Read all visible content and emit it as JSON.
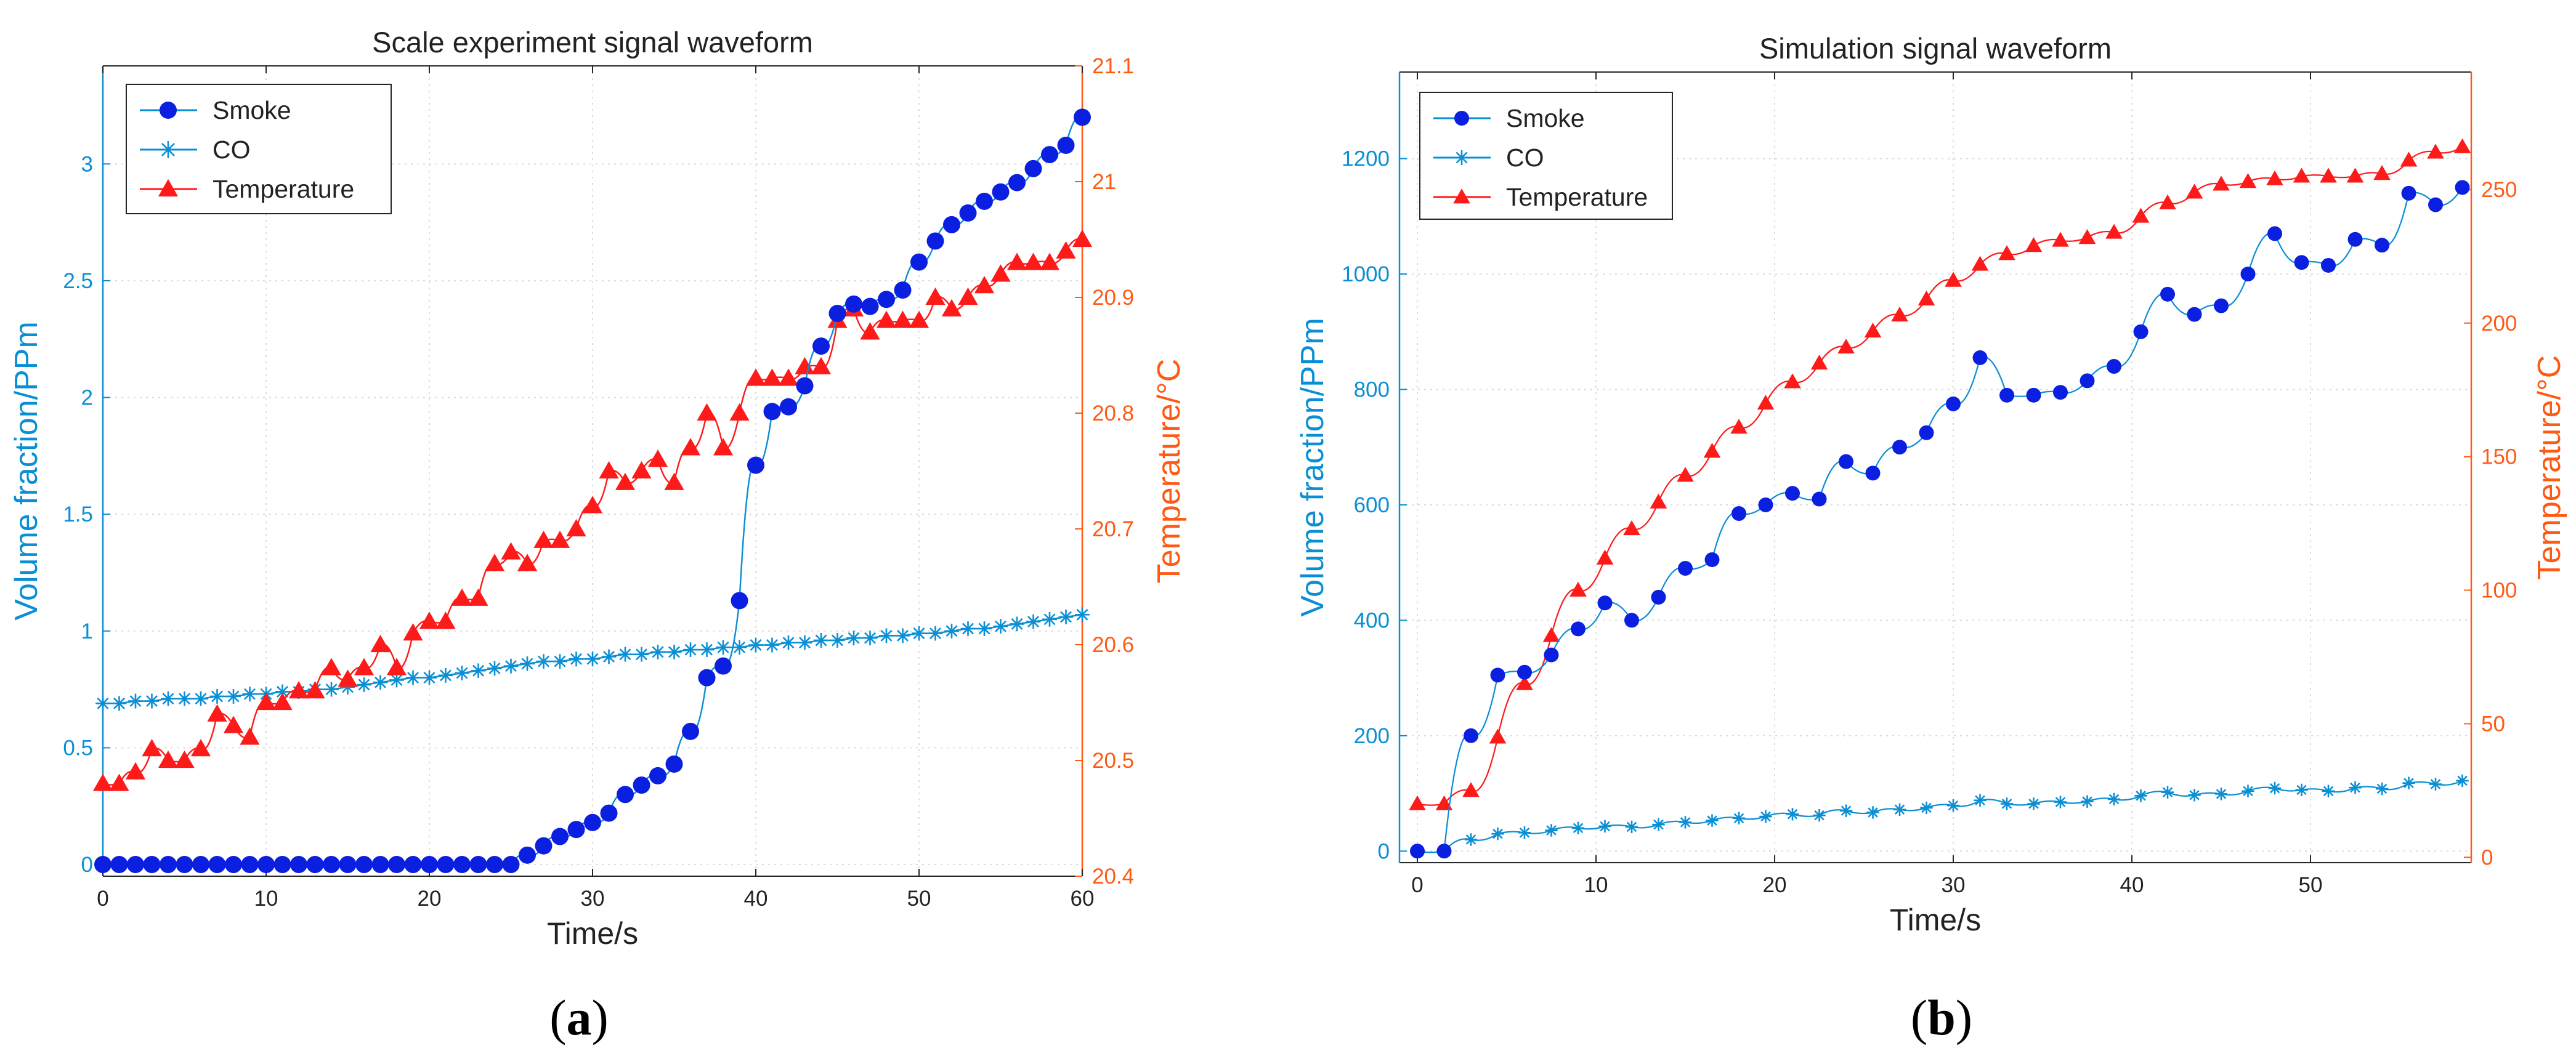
{
  "colors": {
    "left_axis": "#0a8fd4",
    "right_axis": "#ff5a14",
    "smoke": "#0a1fe0",
    "co": "#0a8fd4",
    "temperature": "#ff1a1a",
    "grid": "#dcdcdc",
    "text": "#222222"
  },
  "panels": [
    {
      "label": "(a)",
      "letter": "a"
    },
    {
      "label": "(b)",
      "letter": "b"
    }
  ],
  "chart_data": [
    {
      "type": "line",
      "title": "Scale experiment signal waveform",
      "xlabel": "Time/s",
      "ylabel": "Volume fraction/PPm",
      "y2label": "Temperature/°C",
      "xlim": [
        0,
        60
      ],
      "ylim": [
        -0.05,
        3.42
      ],
      "y2lim": [
        20.4,
        21.1
      ],
      "xticks": [
        0,
        10,
        20,
        30,
        40,
        50,
        60
      ],
      "yticks": [
        0,
        0.5,
        1,
        1.5,
        2,
        2.5,
        3
      ],
      "y2ticks": [
        20.4,
        20.5,
        20.6,
        20.7,
        20.8,
        20.9,
        21,
        21.1
      ],
      "grid": true,
      "legend_position": "top-left",
      "legend": [
        "Smoke",
        "CO",
        "Temperature"
      ],
      "series": [
        {
          "name": "Smoke",
          "marker": "circle",
          "axis": "left",
          "x": [
            0,
            1,
            2,
            3,
            4,
            5,
            6,
            7,
            8,
            9,
            10,
            11,
            12,
            13,
            14,
            15,
            16,
            17,
            18,
            19,
            20,
            21,
            22,
            23,
            24,
            25,
            26,
            27,
            28,
            29,
            30,
            31,
            32,
            33,
            34,
            35,
            36,
            37,
            38,
            39,
            40,
            41,
            42,
            43,
            44,
            45,
            46,
            47,
            48,
            49,
            50,
            51,
            52,
            53,
            54,
            55,
            56,
            57,
            58,
            59,
            60
          ],
          "values": [
            0,
            0,
            0,
            0,
            0,
            0,
            0,
            0,
            0,
            0,
            0,
            0,
            0,
            0,
            0,
            0,
            0,
            0,
            0,
            0,
            0,
            0,
            0,
            0,
            0,
            0,
            0.04,
            0.08,
            0.12,
            0.15,
            0.18,
            0.22,
            0.3,
            0.34,
            0.38,
            0.43,
            0.57,
            0.8,
            0.85,
            1.13,
            1.71,
            1.94,
            1.96,
            2.05,
            2.22,
            2.36,
            2.4,
            2.39,
            2.42,
            2.46,
            2.58,
            2.67,
            2.74,
            2.79,
            2.84,
            2.88,
            2.92,
            2.98,
            3.04,
            3.08,
            3.2
          ]
        },
        {
          "name": "CO",
          "marker": "asterisk",
          "axis": "left",
          "x": [
            0,
            1,
            2,
            3,
            4,
            5,
            6,
            7,
            8,
            9,
            10,
            11,
            12,
            13,
            14,
            15,
            16,
            17,
            18,
            19,
            20,
            21,
            22,
            23,
            24,
            25,
            26,
            27,
            28,
            29,
            30,
            31,
            32,
            33,
            34,
            35,
            36,
            37,
            38,
            39,
            40,
            41,
            42,
            43,
            44,
            45,
            46,
            47,
            48,
            49,
            50,
            51,
            52,
            53,
            54,
            55,
            56,
            57,
            58,
            59,
            60
          ],
          "values": [
            0.69,
            0.69,
            0.7,
            0.7,
            0.71,
            0.71,
            0.71,
            0.72,
            0.72,
            0.73,
            0.73,
            0.74,
            0.74,
            0.75,
            0.75,
            0.76,
            0.77,
            0.78,
            0.79,
            0.8,
            0.8,
            0.81,
            0.82,
            0.83,
            0.84,
            0.85,
            0.86,
            0.87,
            0.87,
            0.88,
            0.88,
            0.89,
            0.9,
            0.9,
            0.91,
            0.91,
            0.92,
            0.92,
            0.93,
            0.93,
            0.94,
            0.94,
            0.95,
            0.95,
            0.96,
            0.96,
            0.97,
            0.97,
            0.98,
            0.98,
            0.99,
            0.99,
            1.0,
            1.01,
            1.01,
            1.02,
            1.03,
            1.04,
            1.05,
            1.06,
            1.07
          ]
        },
        {
          "name": "Temperature",
          "marker": "triangle",
          "axis": "right",
          "x": [
            0,
            1,
            2,
            3,
            4,
            5,
            6,
            7,
            8,
            9,
            10,
            11,
            12,
            13,
            14,
            15,
            16,
            17,
            18,
            19,
            20,
            21,
            22,
            23,
            24,
            25,
            26,
            27,
            28,
            29,
            30,
            31,
            32,
            33,
            34,
            35,
            36,
            37,
            38,
            39,
            40,
            41,
            42,
            43,
            44,
            45,
            46,
            47,
            48,
            49,
            50,
            51,
            52,
            53,
            54,
            55,
            56,
            57,
            58,
            59,
            60
          ],
          "values": [
            20.48,
            20.48,
            20.49,
            20.51,
            20.5,
            20.5,
            20.51,
            20.54,
            20.53,
            20.52,
            20.55,
            20.55,
            20.56,
            20.56,
            20.58,
            20.57,
            20.58,
            20.6,
            20.58,
            20.61,
            20.62,
            20.62,
            20.64,
            20.64,
            20.67,
            20.68,
            20.67,
            20.69,
            20.69,
            20.7,
            20.72,
            20.75,
            20.74,
            20.75,
            20.76,
            20.74,
            20.77,
            20.8,
            20.77,
            20.8,
            20.83,
            20.83,
            20.83,
            20.84,
            20.84,
            20.88,
            20.89,
            20.87,
            20.88,
            20.88,
            20.88,
            20.9,
            20.89,
            20.9,
            20.91,
            20.92,
            20.93,
            20.93,
            20.93,
            20.94,
            20.95
          ]
        }
      ]
    },
    {
      "type": "line",
      "title": "Simulation signal waveform",
      "xlabel": "Time/s",
      "ylabel": "Volume fraction/PPm",
      "y2label": "Temperature/°C",
      "xlim": [
        -1,
        59
      ],
      "ylim": [
        -20,
        1350
      ],
      "y2lim": [
        -2,
        294
      ],
      "xticks": [
        0,
        10,
        20,
        30,
        40,
        50
      ],
      "yticks": [
        0,
        200,
        400,
        600,
        800,
        1000,
        1200
      ],
      "y2ticks": [
        0,
        50,
        100,
        150,
        200,
        250
      ],
      "grid": true,
      "legend_position": "top-left",
      "legend": [
        "Smoke",
        "CO",
        "Temperature"
      ],
      "series": [
        {
          "name": "Smoke",
          "marker": "circle",
          "axis": "left",
          "x": [
            0,
            1.5,
            3,
            4.5,
            6,
            7.5,
            9,
            10.5,
            12,
            13.5,
            15,
            16.5,
            18,
            19.5,
            21,
            22.5,
            24,
            25.5,
            27,
            28.5,
            30,
            31.5,
            33,
            34.5,
            36,
            37.5,
            39,
            40.5,
            42,
            43.5,
            45,
            46.5,
            48,
            49.5,
            51,
            52.5,
            54,
            55.5,
            57,
            58.5
          ],
          "values": [
            0,
            0,
            200,
            305,
            310,
            340,
            385,
            430,
            400,
            440,
            490,
            505,
            585,
            600,
            620,
            610,
            675,
            655,
            700,
            725,
            775,
            855,
            790,
            790,
            795,
            815,
            840,
            900,
            965,
            930,
            945,
            1000,
            1070,
            1020,
            1015,
            1060,
            1050,
            1140,
            1120,
            1150
          ]
        },
        {
          "name": "CO",
          "marker": "asterisk",
          "axis": "left",
          "x": [
            0,
            1.5,
            3,
            4.5,
            6,
            7.5,
            9,
            10.5,
            12,
            13.5,
            15,
            16.5,
            18,
            19.5,
            21,
            22.5,
            24,
            25.5,
            27,
            28.5,
            30,
            31.5,
            33,
            34.5,
            36,
            37.5,
            39,
            40.5,
            42,
            43.5,
            45,
            46.5,
            48,
            49.5,
            51,
            52.5,
            54,
            55.5,
            57,
            58.5
          ],
          "values": [
            0,
            0,
            20,
            30,
            32,
            36,
            40,
            43,
            42,
            46,
            50,
            53,
            57,
            60,
            64,
            62,
            70,
            67,
            72,
            75,
            79,
            88,
            82,
            82,
            85,
            86,
            90,
            96,
            102,
            97,
            99,
            104,
            109,
            106,
            104,
            110,
            108,
            118,
            116,
            122
          ]
        },
        {
          "name": "Temperature",
          "marker": "triangle",
          "axis": "right",
          "x": [
            0,
            1.5,
            3,
            4.5,
            6,
            7.5,
            9,
            10.5,
            12,
            13.5,
            15,
            16.5,
            18,
            19.5,
            21,
            22.5,
            24,
            25.5,
            27,
            28.5,
            30,
            31.5,
            33,
            34.5,
            36,
            37.5,
            39,
            40.5,
            42,
            43.5,
            45,
            46.5,
            48,
            49.5,
            51,
            52.5,
            54,
            55.5,
            57,
            58.5
          ],
          "values": [
            20,
            20,
            25,
            45,
            65,
            83,
            100,
            112,
            123,
            133,
            143,
            152,
            161,
            170,
            178,
            185,
            191,
            197,
            203,
            209,
            216,
            222,
            226,
            229,
            231,
            232,
            234,
            240,
            245,
            249,
            252,
            253,
            254,
            255,
            255,
            255,
            256,
            261,
            264,
            266
          ]
        }
      ]
    }
  ]
}
